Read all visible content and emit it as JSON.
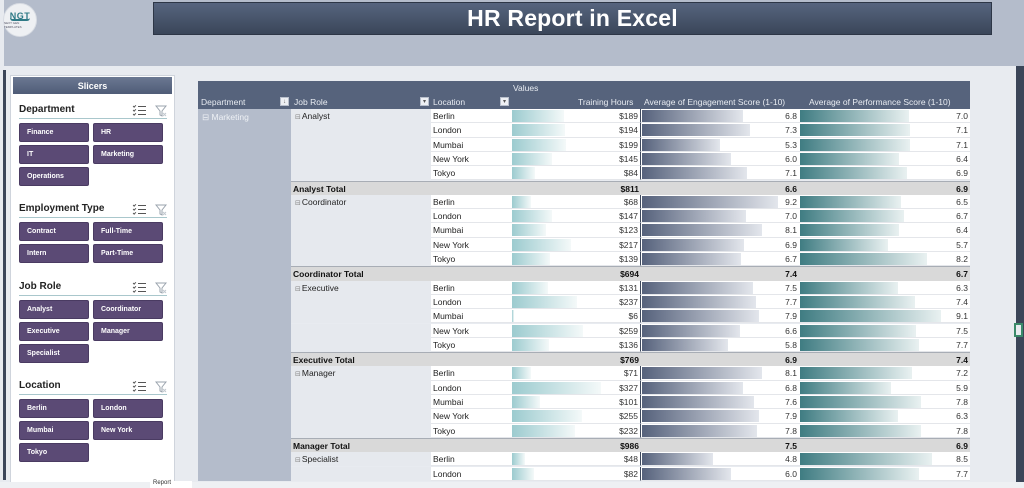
{
  "logo": {
    "text": "NGT",
    "subtext": "NEXT GEN TEMPLATES"
  },
  "title": "HR Report in Excel",
  "slicers": {
    "header": "Slicers",
    "groups": [
      {
        "title": "Department",
        "items": [
          "Finance",
          "HR",
          "IT",
          "Marketing",
          "Operations"
        ]
      },
      {
        "title": "Employment Type",
        "items": [
          "Contract",
          "Full-Time",
          "Intern",
          "Part-Time"
        ]
      },
      {
        "title": "Job Role",
        "items": [
          "Analyst",
          "Coordinator",
          "Executive",
          "Manager",
          "Specialist"
        ]
      },
      {
        "title": "Location",
        "items": [
          "Berlin",
          "London",
          "Mumbai",
          "New York",
          "Tokyo"
        ]
      }
    ]
  },
  "pivot": {
    "values_label": "Values",
    "headers": {
      "department": "Department",
      "job_role": "Job Role",
      "location": "Location",
      "training_hours": "Training Hours",
      "engagement": "Average of Engagement Score (1-10)",
      "performance": "Average of Performance Score (1-10)"
    },
    "department": "Marketing",
    "groups": [
      {
        "role": "Analyst",
        "rows": [
          {
            "location": "Berlin",
            "training": "$189",
            "engagement": "6.8",
            "performance": "7.0"
          },
          {
            "location": "London",
            "training": "$194",
            "engagement": "7.3",
            "performance": "7.1"
          },
          {
            "location": "Mumbai",
            "training": "$199",
            "engagement": "5.3",
            "performance": "7.1"
          },
          {
            "location": "New York",
            "training": "$145",
            "engagement": "6.0",
            "performance": "6.4"
          },
          {
            "location": "Tokyo",
            "training": "$84",
            "engagement": "7.1",
            "performance": "6.9"
          }
        ],
        "total": {
          "label": "Analyst Total",
          "training": "$811",
          "engagement": "6.6",
          "performance": "6.9"
        }
      },
      {
        "role": "Coordinator",
        "rows": [
          {
            "location": "Berlin",
            "training": "$68",
            "engagement": "9.2",
            "performance": "6.5"
          },
          {
            "location": "London",
            "training": "$147",
            "engagement": "7.0",
            "performance": "6.7"
          },
          {
            "location": "Mumbai",
            "training": "$123",
            "engagement": "8.1",
            "performance": "6.4"
          },
          {
            "location": "New York",
            "training": "$217",
            "engagement": "6.9",
            "performance": "5.7"
          },
          {
            "location": "Tokyo",
            "training": "$139",
            "engagement": "6.7",
            "performance": "8.2"
          }
        ],
        "total": {
          "label": "Coordinator Total",
          "training": "$694",
          "engagement": "7.4",
          "performance": "6.7"
        }
      },
      {
        "role": "Executive",
        "rows": [
          {
            "location": "Berlin",
            "training": "$131",
            "engagement": "7.5",
            "performance": "6.3"
          },
          {
            "location": "London",
            "training": "$237",
            "engagement": "7.7",
            "performance": "7.4"
          },
          {
            "location": "Mumbai",
            "training": "$6",
            "engagement": "7.9",
            "performance": "9.1"
          },
          {
            "location": "New York",
            "training": "$259",
            "engagement": "6.6",
            "performance": "7.5"
          },
          {
            "location": "Tokyo",
            "training": "$136",
            "engagement": "5.8",
            "performance": "7.7"
          }
        ],
        "total": {
          "label": "Executive Total",
          "training": "$769",
          "engagement": "6.9",
          "performance": "7.4"
        }
      },
      {
        "role": "Manager",
        "rows": [
          {
            "location": "Berlin",
            "training": "$71",
            "engagement": "8.1",
            "performance": "7.2"
          },
          {
            "location": "London",
            "training": "$327",
            "engagement": "6.8",
            "performance": "5.9"
          },
          {
            "location": "Mumbai",
            "training": "$101",
            "engagement": "7.6",
            "performance": "7.8"
          },
          {
            "location": "New York",
            "training": "$255",
            "engagement": "7.9",
            "performance": "6.3"
          },
          {
            "location": "Tokyo",
            "training": "$232",
            "engagement": "7.8",
            "performance": "7.8"
          }
        ],
        "total": {
          "label": "Manager Total",
          "training": "$986",
          "engagement": "7.5",
          "performance": "6.9"
        }
      },
      {
        "role": "Specialist",
        "rows": [
          {
            "location": "Berlin",
            "training": "$48",
            "engagement": "4.8",
            "performance": "8.5"
          },
          {
            "location": "London",
            "training": "$82",
            "engagement": "6.0",
            "performance": "7.7"
          }
        ]
      }
    ]
  },
  "colors": {
    "slicer_button": "#5b4a75",
    "header_bg": "#56637c",
    "training_bar": "#9ccbcf",
    "engagement_bar": "#56627c",
    "performance_bar": "#3f7c82"
  }
}
